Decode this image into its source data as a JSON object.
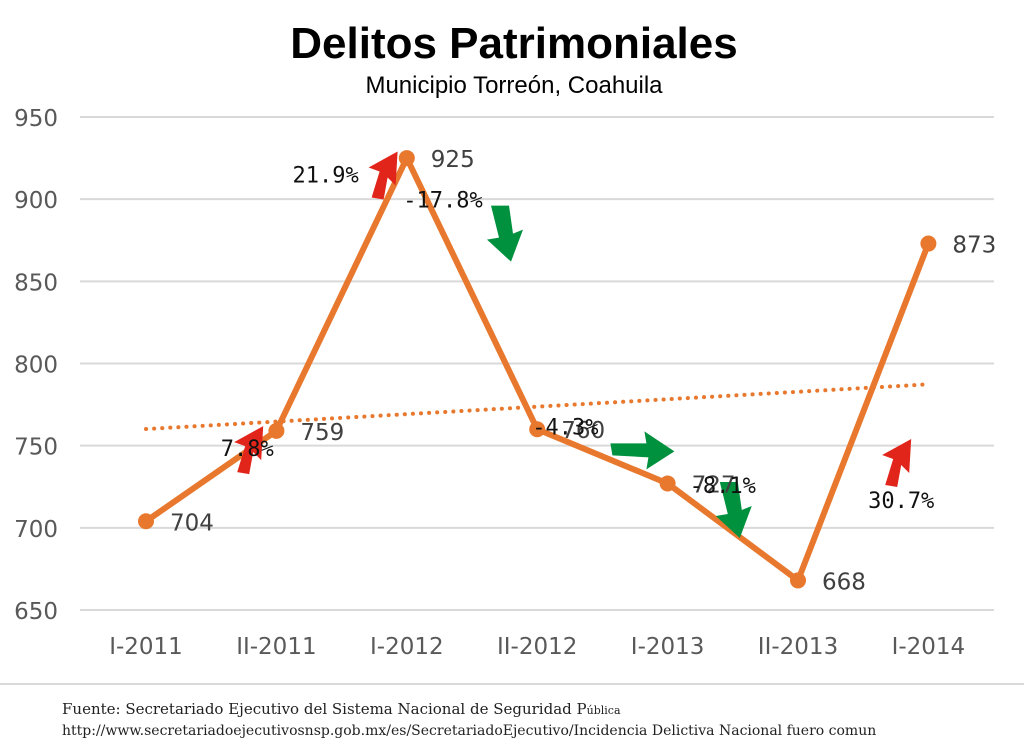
{
  "chart_data": {
    "type": "line",
    "title": "Delitos Patrimoniales",
    "subtitle": "Municipio Torreón, Coahuila",
    "categories": [
      "I-2011",
      "II-2011",
      "I-2012",
      "II-2012",
      "I-2013",
      "II-2013",
      "I-2014"
    ],
    "series": [
      {
        "values": [
          704,
          759,
          925,
          760,
          727,
          668,
          873
        ]
      }
    ],
    "changes": [
      {
        "from": "I-2011",
        "to": "II-2011",
        "text": "7.8%",
        "direction": "up"
      },
      {
        "from": "II-2011",
        "to": "I-2012",
        "text": "21.9%",
        "direction": "up"
      },
      {
        "from": "I-2012",
        "to": "II-2012",
        "text": "-17.8%",
        "direction": "down"
      },
      {
        "from": "II-2012",
        "to": "I-2013",
        "text": "-4.3%",
        "direction": "down"
      },
      {
        "from": "I-2013",
        "to": "II-2013",
        "text": "-8.1%",
        "direction": "down"
      },
      {
        "from": "II-2013",
        "to": "I-2014",
        "text": "30.7%",
        "direction": "up"
      }
    ],
    "trendline": true,
    "ylim": [
      650,
      950
    ],
    "yticks": [
      650,
      700,
      750,
      800,
      850,
      900,
      950
    ],
    "grid": true,
    "colors": {
      "line": "#e8782e",
      "up_arrow": "#e1251b",
      "down_arrow": "#00913f",
      "grid": "#d9d9d9"
    }
  },
  "footer": {
    "source_label": "Fuente: Secretariado Ejecutivo del Sistema Nacional de Seguridad P",
    "source_label_tail": "ública",
    "url": "http://www.secretariadoejecutivosnsp.gob.mx/es/SecretariadoEjecutivo/Incidencia Delictiva Nacional fuero comun"
  }
}
